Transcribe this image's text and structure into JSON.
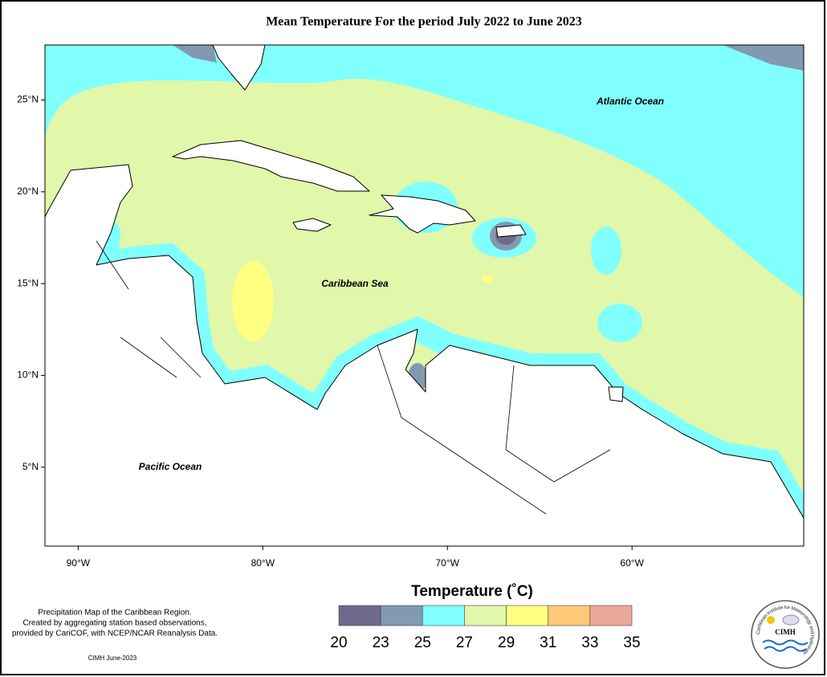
{
  "title": "Mean Temperature For the period July 2022 to June 2023",
  "map": {
    "xlim": [
      -91.8,
      -50.7
    ],
    "ylim": [
      0.7,
      28.0
    ],
    "xticks": [
      {
        "value": -90,
        "label": "90°W"
      },
      {
        "value": -80,
        "label": "80°W"
      },
      {
        "value": -70,
        "label": "70°W"
      },
      {
        "value": -60,
        "label": "60°W"
      }
    ],
    "yticks": [
      {
        "value": 5,
        "label": "5°N"
      },
      {
        "value": 10,
        "label": "10°N"
      },
      {
        "value": 15,
        "label": "15°N"
      },
      {
        "value": 20,
        "label": "20°N"
      },
      {
        "value": 25,
        "label": "25°N"
      }
    ]
  },
  "labels": {
    "atlantic": "Atlantic Ocean",
    "caribbean": "Caribbean Sea",
    "pacific": "Pacific Ocean"
  },
  "legend": {
    "title": "Temperature (˚C)",
    "ticks": [
      20,
      23,
      25,
      27,
      29,
      31,
      33,
      35
    ],
    "colors": [
      "#6e6a8c",
      "#8299b1",
      "#80ffff",
      "#e1f7aa",
      "#ffff80",
      "#ffc878",
      "#eba89a"
    ]
  },
  "footnote": {
    "lines": [
      "Precipitation Map of the Caribbean Region.",
      "Created by aggregating station based observations,",
      "provided by CariCOF, with NCEP/NCAR Reanalysis Data."
    ],
    "credit": "CIMH June-2023"
  },
  "logo": {
    "name": "CIMH",
    "ring": "Caribbean Institute for Meteorology and Hydrology"
  }
}
